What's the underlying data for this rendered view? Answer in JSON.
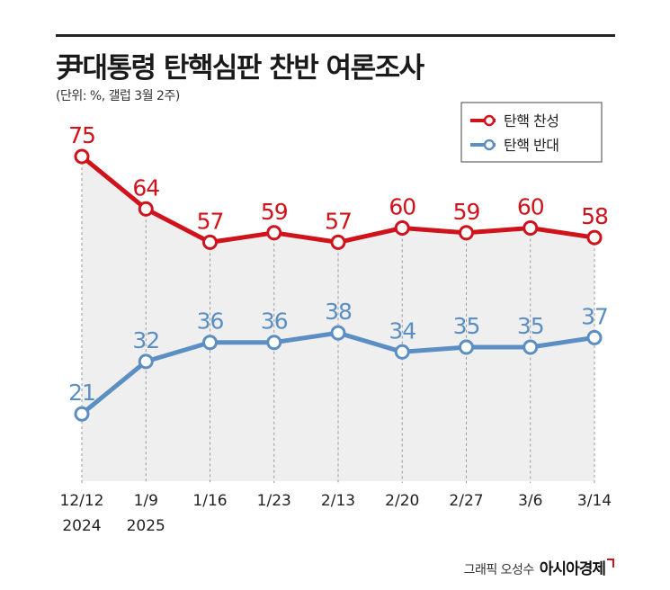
{
  "title": "尹대통령 탄핵심판 찬반 여론조사",
  "subtitle": "(단위: %, 갤럽 3월 2주)",
  "credit": {
    "author": "그래픽 오성수",
    "publisher": "아시아경제"
  },
  "colors": {
    "approve": "#d0121b",
    "oppose": "#5b8fc3",
    "fill": "#efefef",
    "grid": "#9a9a9a"
  },
  "chart_data": {
    "type": "line",
    "categories": [
      "12/12",
      "1/9",
      "1/16",
      "1/23",
      "2/13",
      "2/20",
      "2/27",
      "3/6",
      "3/14"
    ],
    "category_years": [
      "2024",
      "2025",
      "",
      "",
      "",
      "",
      "",
      "",
      ""
    ],
    "series": [
      {
        "name": "탄핵 찬성",
        "values": [
          75,
          64,
          57,
          59,
          57,
          60,
          59,
          60,
          58
        ]
      },
      {
        "name": "탄핵 반대",
        "values": [
          21,
          32,
          36,
          36,
          38,
          34,
          35,
          35,
          37
        ]
      }
    ],
    "legend_position": "top-right",
    "grid": "vertical-dashed"
  }
}
